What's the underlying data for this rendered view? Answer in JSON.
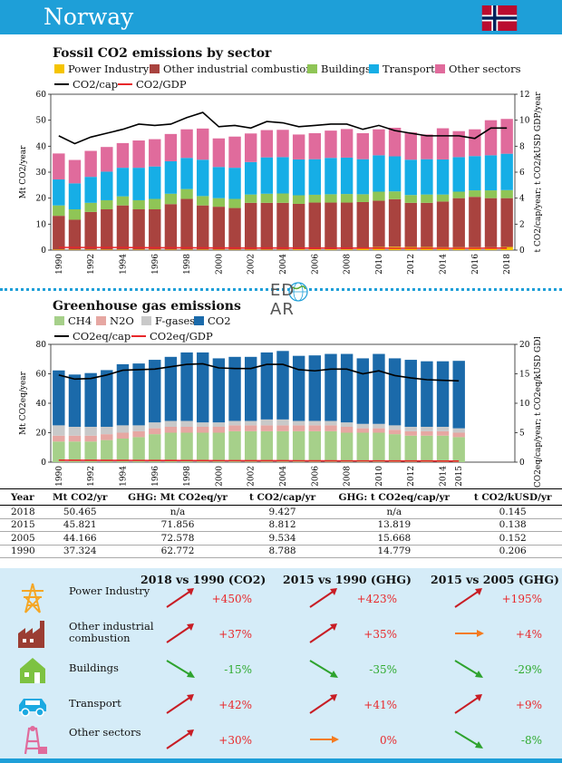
{
  "header": {
    "country": "Norway",
    "accent": "#1e9fd8"
  },
  "chart1": {
    "title": "Fossil CO2 emissions by sector",
    "legend": {
      "power": "Power Industry",
      "other_ind": "Other industrial combustion",
      "buildings": "Buildings",
      "transport": "Transport",
      "other_sectors": "Other sectors",
      "co2cap": "CO2/cap",
      "co2gdp": "CO2/GDP"
    }
  },
  "chart2": {
    "title": "Greenhouse gas emissions",
    "logo": "EDGAR",
    "legend": {
      "ch4": "CH4",
      "n2o": "N2O",
      "fgases": "F-gases",
      "co2": "CO2",
      "cap": "CO2eq/cap",
      "gdp": "CO2eq/GDP"
    }
  },
  "chart_data": [
    {
      "type": "bar",
      "stacked": true,
      "title": "Fossil CO2 emissions by sector",
      "ylabel": "Mt CO2/year",
      "ylabel2": "t CO2/cap/year; t CO2/kUSD GDP/year",
      "ylim": [
        0,
        60
      ],
      "ylim2": [
        0,
        12
      ],
      "yticks": [
        0,
        10,
        20,
        30,
        40,
        50,
        60
      ],
      "yticks2": [
        0,
        2,
        4,
        6,
        8,
        10,
        12
      ],
      "categories": [
        1990,
        1991,
        1992,
        1993,
        1994,
        1995,
        1996,
        1997,
        1998,
        1999,
        2000,
        2001,
        2002,
        2003,
        2004,
        2005,
        2006,
        2007,
        2008,
        2009,
        2010,
        2011,
        2012,
        2013,
        2014,
        2015,
        2016,
        2017,
        2018
      ],
      "xticks": [
        "1990",
        "1992",
        "1994",
        "1996",
        "1998",
        "2000",
        "2002",
        "2004",
        "2006",
        "2008",
        "2010",
        "2012",
        "2014",
        "2016",
        "2018"
      ],
      "series": [
        {
          "name": "Power Industry",
          "color": "#f5c400",
          "values": [
            0.2,
            0.2,
            0.2,
            0.2,
            0.2,
            0.2,
            0.2,
            0.2,
            0.2,
            0.2,
            0.2,
            0.2,
            0.2,
            0.2,
            0.2,
            0.3,
            0.3,
            0.3,
            0.3,
            1.0,
            1.2,
            1.3,
            1.2,
            1.2,
            1.1,
            1.1,
            1.1,
            1.1,
            1.2
          ]
        },
        {
          "name": "Other industrial combustion",
          "color": "#a9433f",
          "values": [
            13,
            11.5,
            14.5,
            15.5,
            17,
            15.5,
            15.5,
            17.5,
            19.5,
            17,
            16.5,
            16,
            18,
            18,
            18,
            17.5,
            18,
            18,
            18,
            17.5,
            17.8,
            18.3,
            17,
            17,
            17.6,
            18.9,
            19.4,
            18.9,
            18.8
          ]
        },
        {
          "name": "Buildings",
          "color": "#8fc556",
          "values": [
            4,
            4,
            3.5,
            3.5,
            3.5,
            3.5,
            4,
            4,
            3.8,
            3.6,
            3.3,
            3.5,
            3.2,
            3.5,
            3.6,
            3.3,
            3,
            3.2,
            3.3,
            3,
            3.5,
            3,
            3,
            3.2,
            2.7,
            2.5,
            2.5,
            3,
            3.1
          ]
        },
        {
          "name": "Transport",
          "color": "#16aee6",
          "values": [
            10,
            10,
            10,
            11,
            11,
            12.5,
            12.5,
            12.5,
            12,
            14,
            12,
            12,
            12.5,
            14,
            14,
            13.8,
            13.7,
            14,
            14,
            13.5,
            14,
            13.5,
            13.6,
            13.6,
            13.5,
            13.3,
            13.2,
            13.5,
            14
          ]
        },
        {
          "name": "Other sectors",
          "color": "#e06b9c",
          "values": [
            10,
            9,
            10,
            9.5,
            9.5,
            10.5,
            10.5,
            10.5,
            11,
            12,
            11,
            12,
            11,
            10.5,
            10.5,
            9.6,
            10,
            10.5,
            11,
            10,
            10,
            11,
            10.5,
            9.5,
            12,
            10,
            10.3,
            13.5,
            13.4
          ]
        }
      ],
      "lines": [
        {
          "name": "CO2/cap",
          "color": "#000000",
          "axis": "right",
          "values": [
            8.8,
            8.2,
            8.7,
            9.0,
            9.3,
            9.7,
            9.6,
            9.7,
            10.2,
            10.6,
            9.5,
            9.6,
            9.4,
            9.9,
            9.8,
            9.5,
            9.6,
            9.7,
            9.7,
            9.3,
            9.6,
            9.2,
            9.0,
            8.8,
            8.8,
            8.8,
            8.6,
            9.4,
            9.4
          ]
        },
        {
          "name": "CO2/GDP",
          "color": "#e8272a",
          "axis": "right",
          "values": [
            0.21,
            0.2,
            0.2,
            0.2,
            0.2,
            0.19,
            0.18,
            0.18,
            0.18,
            0.17,
            0.16,
            0.16,
            0.15,
            0.16,
            0.16,
            0.15,
            0.15,
            0.15,
            0.15,
            0.15,
            0.15,
            0.14,
            0.14,
            0.14,
            0.14,
            0.14,
            0.14,
            0.15,
            0.15
          ]
        }
      ]
    },
    {
      "type": "bar",
      "stacked": true,
      "title": "Greenhouse gas emissions",
      "ylabel": "Mt CO2eq/year",
      "ylabel2": "t CO2eq/cap/year; t CO2eq/kUSD GDP/year",
      "ylim": [
        0,
        80
      ],
      "ylim2": [
        0,
        20
      ],
      "yticks": [
        0,
        20,
        40,
        60,
        80
      ],
      "yticks2": [
        0,
        5,
        10,
        15,
        20
      ],
      "categories": [
        1990,
        1991,
        1992,
        1993,
        1994,
        1995,
        1996,
        1997,
        1998,
        1999,
        2000,
        2001,
        2002,
        2003,
        2004,
        2005,
        2006,
        2007,
        2008,
        2009,
        2010,
        2011,
        2012,
        2013,
        2014,
        2015
      ],
      "xticks": [
        "1990",
        "1992",
        "1994",
        "1996",
        "1998",
        "2000",
        "2002",
        "2004",
        "2006",
        "2008",
        "2010",
        "2012",
        "2014",
        "2015"
      ],
      "series": [
        {
          "name": "CH4",
          "color": "#a6d08a",
          "values": [
            14,
            14,
            14,
            15,
            16,
            17,
            19,
            20,
            20,
            20,
            20,
            21,
            21,
            21,
            21,
            21,
            21,
            21,
            20,
            20,
            20,
            19,
            18,
            18,
            18,
            17
          ]
        },
        {
          "name": "N2O",
          "color": "#e6a7a2",
          "values": [
            4,
            4,
            4,
            4,
            4,
            4,
            4,
            4,
            4,
            4,
            4,
            4,
            4,
            4,
            4,
            4,
            4,
            4,
            4,
            3,
            3,
            3,
            3,
            3,
            3,
            3
          ]
        },
        {
          "name": "F-gases",
          "color": "#c9c9c9",
          "values": [
            7,
            6,
            6,
            5,
            5,
            4,
            4,
            4,
            4,
            3,
            3,
            3,
            3,
            4,
            4,
            3,
            3,
            3,
            3,
            3,
            3,
            3,
            3,
            3,
            3,
            3
          ]
        },
        {
          "name": "CO2",
          "color": "#1b6aaa",
          "values": [
            37.3,
            35.5,
            36.5,
            38.5,
            41.5,
            42,
            42.5,
            43.5,
            46.5,
            47.5,
            43.5,
            43.5,
            43.5,
            45.5,
            46.5,
            44.2,
            44.5,
            45.5,
            46.5,
            44.5,
            47.5,
            45.5,
            45.5,
            44.5,
            44.5,
            45.8
          ]
        }
      ],
      "lines": [
        {
          "name": "CO2eq/cap",
          "color": "#000000",
          "axis": "right",
          "values": [
            14.8,
            14.1,
            14.2,
            14.8,
            15.6,
            15.7,
            15.8,
            16.2,
            16.6,
            16.7,
            16.0,
            15.9,
            15.9,
            16.6,
            16.6,
            15.7,
            15.5,
            15.8,
            15.8,
            15.0,
            15.5,
            14.7,
            14.3,
            14.0,
            13.9,
            13.8
          ]
        },
        {
          "name": "CO2eq/GDP",
          "color": "#e8272a",
          "axis": "right",
          "values": [
            0.33,
            0.32,
            0.31,
            0.3,
            0.3,
            0.29,
            0.28,
            0.28,
            0.27,
            0.26,
            0.25,
            0.25,
            0.24,
            0.24,
            0.24,
            0.23,
            0.22,
            0.22,
            0.21,
            0.21,
            0.21,
            0.2,
            0.2,
            0.2,
            0.19,
            0.19
          ]
        }
      ]
    }
  ],
  "table": {
    "headers": [
      "Year",
      "Mt CO2/yr",
      "GHG: Mt CO2eq/yr",
      "t CO2/cap/yr",
      "GHG: t CO2eq/cap/yr",
      "t CO2/kUSD/yr"
    ],
    "rows": [
      [
        "2018",
        "50.465",
        "n/a",
        "9.427",
        "n/a",
        "0.145"
      ],
      [
        "2015",
        "45.821",
        "71.856",
        "8.812",
        "13.819",
        "0.138"
      ],
      [
        "2005",
        "44.166",
        "72.578",
        "9.534",
        "15.668",
        "0.152"
      ],
      [
        "1990",
        "37.324",
        "62.772",
        "8.788",
        "14.779",
        "0.206"
      ]
    ]
  },
  "trends": {
    "headers": [
      "2018 vs 1990 (CO2)",
      "2015 vs 1990 (GHG)",
      "2015 vs 2005 (GHG)"
    ],
    "rows": [
      {
        "label": "Power Industry",
        "icon": "power-tower-icon",
        "icon_color": "#f5a623",
        "vals": [
          "+450%",
          "+423%",
          "+195%"
        ],
        "dirs": [
          "up",
          "up",
          "up"
        ]
      },
      {
        "label": "Other industrial combustion",
        "icon": "factory-icon",
        "icon_color": "#9b3d33",
        "vals": [
          "+37%",
          "+35%",
          "+4%"
        ],
        "dirs": [
          "up",
          "up",
          "flat"
        ]
      },
      {
        "label": "Buildings",
        "icon": "house-icon",
        "icon_color": "#7dc241",
        "vals": [
          "-15%",
          "-35%",
          "-29%"
        ],
        "dirs": [
          "down",
          "down",
          "down"
        ]
      },
      {
        "label": "Transport",
        "icon": "car-icon",
        "icon_color": "#1ba9e1",
        "vals": [
          "+42%",
          "+41%",
          "+9%"
        ],
        "dirs": [
          "up",
          "up",
          "up"
        ]
      },
      {
        "label": "Other sectors",
        "icon": "mine-icon",
        "icon_color": "#e06b9c",
        "vals": [
          "+30%",
          "0%",
          "-8%"
        ],
        "dirs": [
          "up",
          "flat",
          "down"
        ]
      }
    ]
  }
}
